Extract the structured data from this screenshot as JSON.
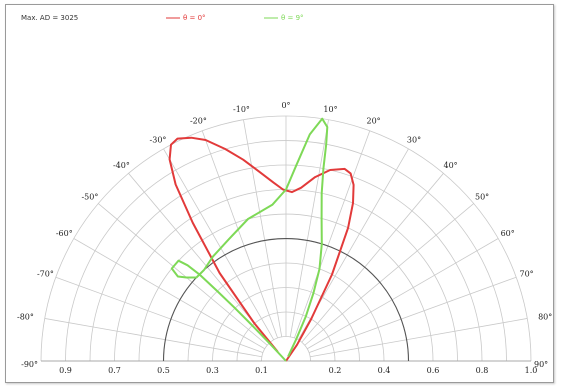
{
  "chart_data": {
    "type": "polar",
    "header_text": "Max. AD = 3025",
    "legend": [
      {
        "label": "θ = 0°",
        "color": "#e23a3a"
      },
      {
        "label": "θ = 9°",
        "color": "#7ed957"
      }
    ],
    "angle_labels": [
      {
        "deg": -90,
        "text": "-90°"
      },
      {
        "deg": -80,
        "text": "-80°"
      },
      {
        "deg": -70,
        "text": "-70°"
      },
      {
        "deg": -60,
        "text": "-60°"
      },
      {
        "deg": -50,
        "text": "-50°"
      },
      {
        "deg": -40,
        "text": "-40°"
      },
      {
        "deg": -30,
        "text": "-30°"
      },
      {
        "deg": -20,
        "text": "-20°"
      },
      {
        "deg": -10,
        "text": "-10°"
      },
      {
        "deg": 0,
        "text": "0°"
      },
      {
        "deg": 10,
        "text": "10°"
      },
      {
        "deg": 20,
        "text": "20°"
      },
      {
        "deg": 30,
        "text": "30°"
      },
      {
        "deg": 40,
        "text": "40°"
      },
      {
        "deg": 50,
        "text": "50°"
      },
      {
        "deg": 60,
        "text": "60°"
      },
      {
        "deg": 70,
        "text": "70°"
      },
      {
        "deg": 80,
        "text": "80°"
      },
      {
        "deg": 90,
        "text": "90°"
      }
    ],
    "radial_labels_left": [
      "0.9",
      "0.7",
      "0.5",
      "0.3",
      "0.1"
    ],
    "radial_labels_right": [
      "0.2",
      "0.4",
      "0.6",
      "0.8",
      "1.0"
    ],
    "reference_circle_r": 0.5,
    "series": [
      {
        "name": "θ = 0°",
        "color": "#e23a3a",
        "points": [
          [
            -42,
            0.05
          ],
          [
            -40,
            0.2
          ],
          [
            -37,
            0.45
          ],
          [
            -34,
            0.68
          ],
          [
            -32,
            0.85
          ],
          [
            -30,
            0.95
          ],
          [
            -28,
            1.0
          ],
          [
            -26,
            1.01
          ],
          [
            -23,
            0.99
          ],
          [
            -20,
            0.96
          ],
          [
            -16,
            0.9
          ],
          [
            -12,
            0.84
          ],
          [
            -8,
            0.78
          ],
          [
            -4,
            0.73
          ],
          [
            -1,
            0.7
          ],
          [
            2,
            0.69
          ],
          [
            5,
            0.71
          ],
          [
            9,
            0.76
          ],
          [
            13,
            0.8
          ],
          [
            17,
            0.82
          ],
          [
            19,
            0.81
          ],
          [
            21,
            0.77
          ],
          [
            23,
            0.7
          ],
          [
            25,
            0.6
          ],
          [
            28,
            0.4
          ],
          [
            31,
            0.2
          ],
          [
            34,
            0.08
          ],
          [
            36,
            0.0
          ]
        ]
      },
      {
        "name": "θ = 9°",
        "color": "#7ed957",
        "points": [
          [
            -42,
            0.0
          ],
          [
            -43,
            0.1
          ],
          [
            -43.5,
            0.2
          ],
          [
            -44,
            0.3
          ],
          [
            -44.5,
            0.4
          ],
          [
            -45,
            0.5
          ],
          [
            -45.8,
            0.56
          ],
          [
            -47,
            0.6
          ],
          [
            -49,
            0.6
          ],
          [
            -51,
            0.6
          ],
          [
            -52,
            0.56
          ],
          [
            -50,
            0.53
          ],
          [
            -47,
            0.5
          ],
          [
            -42,
            0.5
          ],
          [
            -35,
            0.52
          ],
          [
            -25,
            0.55
          ],
          [
            -15,
            0.6
          ],
          [
            -5,
            0.64
          ],
          [
            0,
            0.7
          ],
          [
            3,
            0.8
          ],
          [
            6,
            0.93
          ],
          [
            8.5,
            1.0
          ],
          [
            10,
            0.97
          ],
          [
            10.5,
            0.9
          ],
          [
            11,
            0.8
          ],
          [
            12,
            0.7
          ],
          [
            14,
            0.6
          ],
          [
            17,
            0.5
          ],
          [
            20,
            0.4
          ],
          [
            22,
            0.3
          ],
          [
            24,
            0.2
          ],
          [
            25,
            0.1
          ],
          [
            26,
            0.02
          ]
        ]
      }
    ]
  }
}
